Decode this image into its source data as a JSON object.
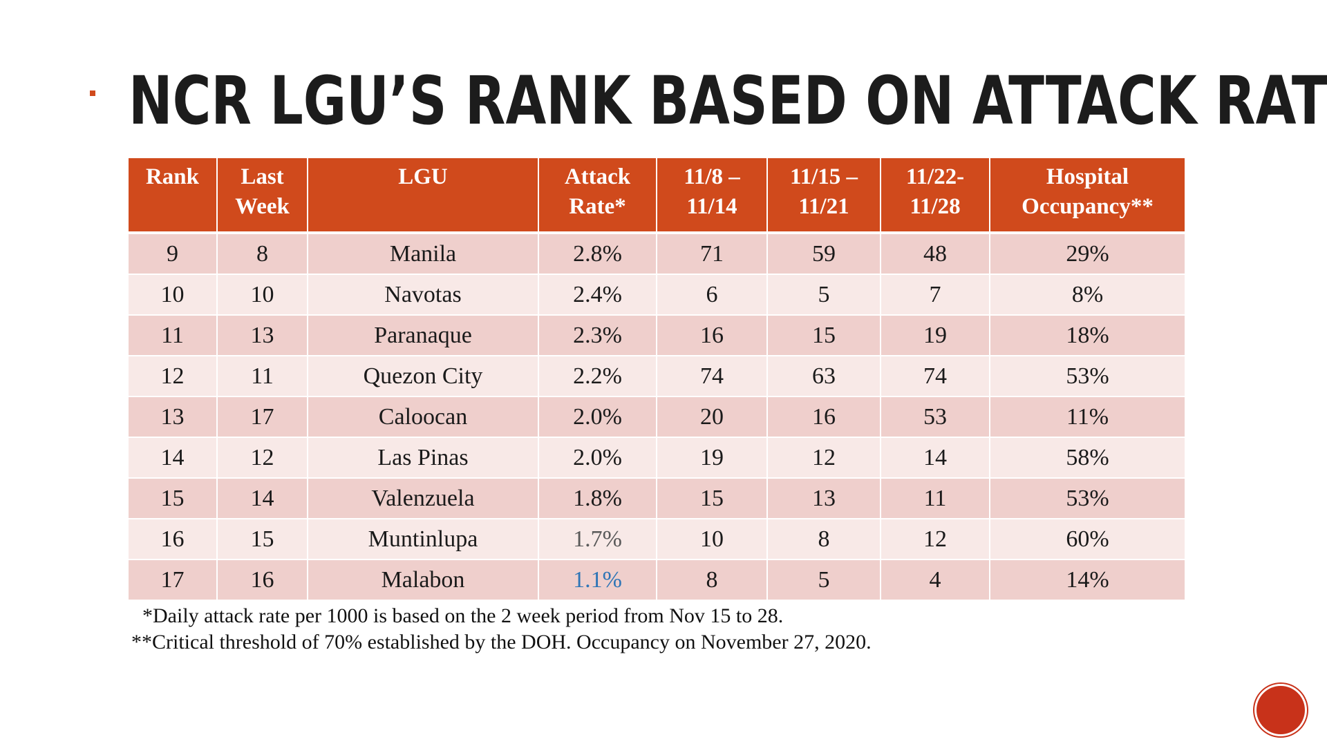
{
  "title": "NCR LGU’s Rank Based On Attack Rate*",
  "table": {
    "headers": [
      [
        "Rank"
      ],
      [
        "Last",
        "Week"
      ],
      [
        "LGU"
      ],
      [
        "Attack",
        "Rate*"
      ],
      [
        "11/8 –",
        "11/14"
      ],
      [
        "11/15 –",
        "11/21"
      ],
      [
        "11/22-",
        "11/28"
      ],
      [
        "Hospital",
        "Occupancy**"
      ]
    ],
    "rows": [
      [
        "9",
        "8",
        "Manila",
        "2.8%",
        "71",
        "59",
        "48",
        "29%"
      ],
      [
        "10",
        "10",
        "Navotas",
        "2.4%",
        "6",
        "5",
        "7",
        "8%"
      ],
      [
        "11",
        "13",
        "Paranaque",
        "2.3%",
        "16",
        "15",
        "19",
        "18%"
      ],
      [
        "12",
        "11",
        "Quezon City",
        "2.2%",
        "74",
        "63",
        "74",
        "53%"
      ],
      [
        "13",
        "17",
        "Caloocan",
        "2.0%",
        "20",
        "16",
        "53",
        "11%"
      ],
      [
        "14",
        "12",
        "Las Pinas",
        "2.0%",
        "19",
        "12",
        "14",
        "58%"
      ],
      [
        "15",
        "14",
        "Valenzuela",
        "1.8%",
        "15",
        "13",
        "11",
        "53%"
      ],
      [
        "16",
        "15",
        "Muntinlupa",
        "1.7%",
        "10",
        "8",
        "12",
        "60%"
      ],
      [
        "17",
        "16",
        "Malabon",
        "1.1%",
        "8",
        "5",
        "4",
        "14%"
      ]
    ],
    "rate_colors": [
      "",
      "",
      "",
      "",
      "",
      "",
      "",
      "#595959",
      "#2e75b6"
    ]
  },
  "footnotes": {
    "attack_rate": "*Daily attack rate per 1000 is based on the 2 week period from Nov 15 to 28.",
    "occupancy": "**Critical threshold of 70% established by the DOH. Occupancy on November 27, 2020."
  },
  "slide_number": "",
  "colors": {
    "accent": "#d04a1c",
    "row_dark": "#efcfcc",
    "row_light": "#f8e9e7"
  }
}
